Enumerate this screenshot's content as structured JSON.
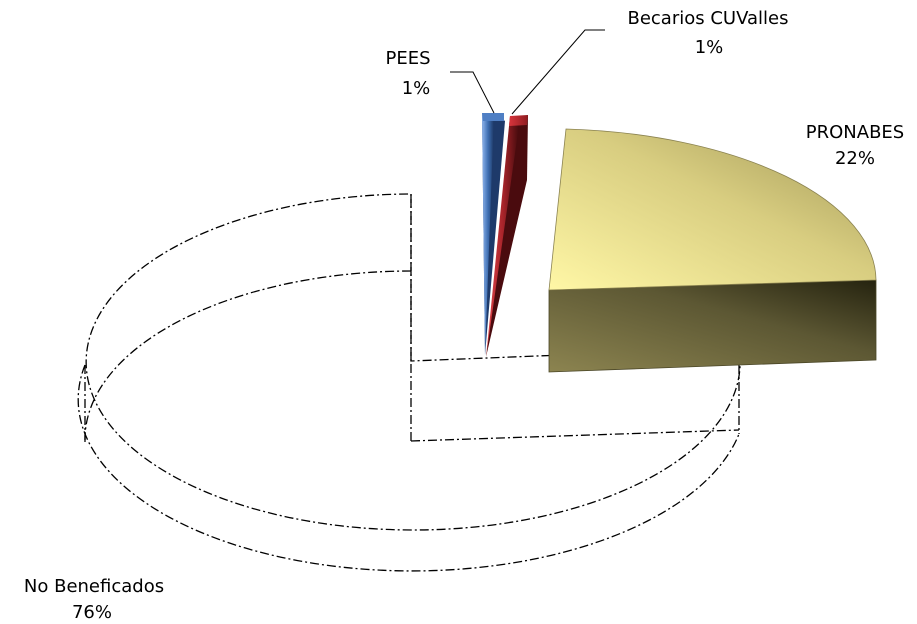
{
  "chart_data": {
    "type": "pie",
    "style": "3d-exploded",
    "title": "",
    "legend": "none",
    "slices": [
      {
        "label": "PRONABES",
        "percent": "22%",
        "value": 22,
        "color": "#c9c06a"
      },
      {
        "label": "Becarios CUValles",
        "percent": "1%",
        "value": 1,
        "color": "#c0282e"
      },
      {
        "label": "PEES",
        "percent": "1%",
        "value": 1,
        "color": "#3e6db0"
      },
      {
        "label": "No Beneficados",
        "percent": "76%",
        "value": 76,
        "color": "#ffffff"
      }
    ]
  }
}
